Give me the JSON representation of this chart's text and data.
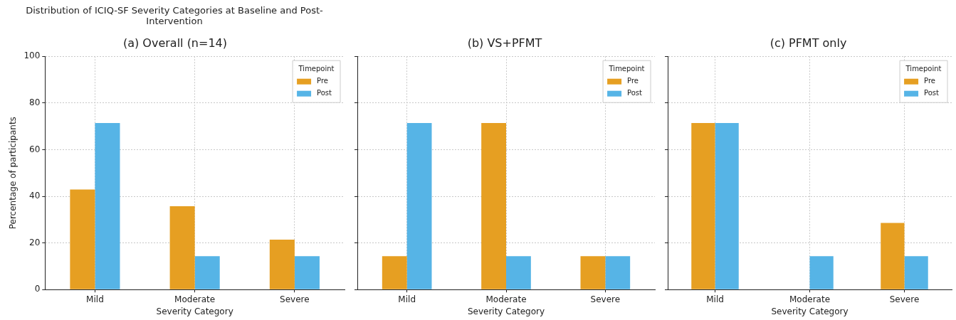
{
  "chart_data": [
    {
      "type": "bar",
      "subtitle": "Distribution of ICIQ-SF Severity Categories at Baseline and Post-Intervention",
      "title": "(a) Overall (n=14)",
      "xlabel": "Severity Category",
      "ylabel": "Percentage of participants",
      "legend_title": "Timepoint",
      "legend": "top right",
      "grid": true,
      "categories": [
        "Mild",
        "Moderate",
        "Severe"
      ],
      "ylim": [
        0,
        100
      ],
      "yticks": [
        0,
        20,
        40,
        60,
        80,
        100
      ],
      "series": [
        {
          "name": "Pre",
          "color": "#e69f22",
          "values": [
            42.9,
            35.7,
            21.4
          ]
        },
        {
          "name": "Post",
          "color": "#56b4e6",
          "values": [
            71.4,
            14.3,
            14.3
          ]
        }
      ]
    },
    {
      "type": "bar",
      "title": "(b) VS+PFMT",
      "xlabel": "Severity Category",
      "legend_title": "Timepoint",
      "legend": "top right",
      "grid": true,
      "tick_labels": "x",
      "categories": [
        "Mild",
        "Moderate",
        "Severe"
      ],
      "ylim": [
        0,
        100
      ],
      "yticks": [
        0,
        20,
        40,
        60,
        80,
        100
      ],
      "series": [
        {
          "name": "Pre",
          "color": "#e69f22",
          "values": [
            14.3,
            71.4,
            14.3
          ]
        },
        {
          "name": "Post",
          "color": "#56b4e6",
          "values": [
            71.4,
            14.3,
            14.3
          ]
        }
      ]
    },
    {
      "type": "bar",
      "title": "(c) PFMT only",
      "xlabel": "Severity Category",
      "legend_title": "Timepoint",
      "legend": "top right",
      "grid": true,
      "tick_labels": "x",
      "categories": [
        "Mild",
        "Moderate",
        "Severe"
      ],
      "ylim": [
        0,
        100
      ],
      "yticks": [
        0,
        20,
        40,
        60,
        80,
        100
      ],
      "series": [
        {
          "name": "Pre",
          "color": "#e69f22",
          "values": [
            71.4,
            0,
            28.6
          ]
        },
        {
          "name": "Post",
          "color": "#56b4e6",
          "values": [
            71.4,
            14.3,
            14.3
          ]
        }
      ]
    }
  ]
}
